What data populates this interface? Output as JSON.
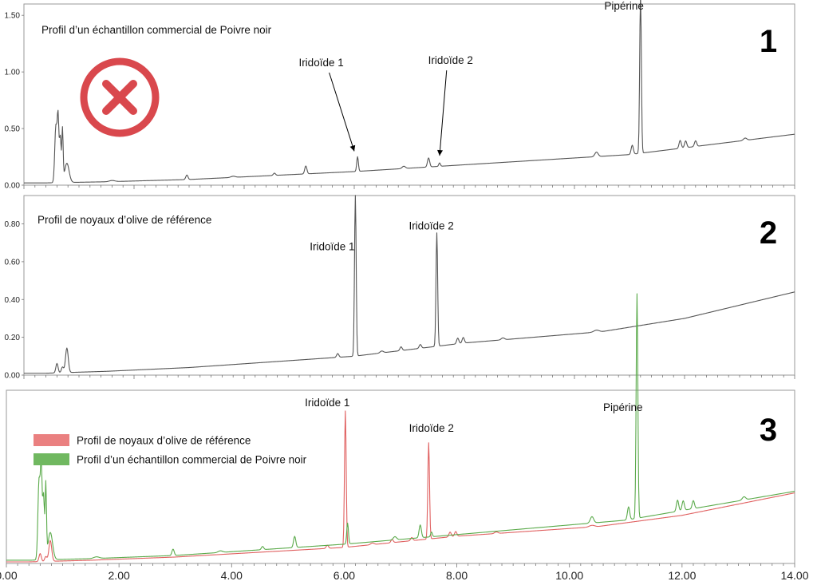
{
  "chart_data": [
    {
      "type": "line",
      "panel_number": "1",
      "title": "Profil d’un échantillon commercial de Poivre noir",
      "xlim": [
        0,
        14
      ],
      "ylim": [
        0,
        1.6
      ],
      "yticks": [
        "0.00",
        "0.50",
        "1.00",
        "1.50"
      ],
      "ytick_values": [
        0,
        0.5,
        1.0,
        1.5
      ],
      "grid": false,
      "rejection_mark": "cross-circle-icon",
      "series": [
        {
          "color": "#555555",
          "baseline": [
            [
              0,
              0.02
            ],
            [
              0.4,
              0.02
            ],
            [
              1.5,
              0.03
            ],
            [
              3,
              0.05
            ],
            [
              6,
              0.12
            ],
            [
              8,
              0.18
            ],
            [
              11,
              0.27
            ],
            [
              14,
              0.45
            ]
          ],
          "peaks": [
            [
              0.58,
              0.5,
              0.02
            ],
            [
              0.62,
              0.56,
              0.015
            ],
            [
              0.66,
              0.4,
              0.015
            ],
            [
              0.7,
              0.46,
              0.012
            ],
            [
              0.78,
              0.17,
              0.04
            ],
            [
              1.6,
              0.01,
              0.05
            ],
            [
              2.96,
              0.04,
              0.02
            ],
            [
              3.8,
              0.01,
              0.04
            ],
            [
              4.55,
              0.02,
              0.02
            ],
            [
              5.12,
              0.07,
              0.02
            ],
            [
              6.06,
              0.13,
              0.015
            ],
            [
              6.9,
              0.02,
              0.03
            ],
            [
              7.35,
              0.08,
              0.02
            ],
            [
              7.55,
              0.03,
              0.015
            ],
            [
              10.4,
              0.04,
              0.03
            ],
            [
              11.05,
              0.08,
              0.02
            ],
            [
              11.2,
              1.4,
              0.015
            ],
            [
              11.92,
              0.07,
              0.02
            ],
            [
              12.02,
              0.06,
              0.02
            ],
            [
              12.2,
              0.05,
              0.02
            ],
            [
              13.1,
              0.02,
              0.03
            ]
          ]
        }
      ],
      "annotations": [
        {
          "text": "Pipérine",
          "x": 11.2,
          "y": 1.55,
          "label_x": 10.9,
          "label_y": 1.55,
          "arrow": false
        },
        {
          "text": "Iridoïde 1",
          "x": 6.0,
          "y": 0.3,
          "label_x": 5.4,
          "label_y": 1.05,
          "arrow": true
        },
        {
          "text": "Iridoïde 2",
          "x": 7.55,
          "y": 0.26,
          "label_x": 7.75,
          "label_y": 1.07,
          "arrow": true
        }
      ]
    },
    {
      "type": "line",
      "panel_number": "2",
      "title": "Profil de noyaux d’olive de référence",
      "xlim": [
        0,
        14
      ],
      "ylim": [
        0,
        0.95
      ],
      "yticks": [
        "0.00",
        "0.20",
        "0.40",
        "0.60",
        "0.80"
      ],
      "ytick_values": [
        0,
        0.2,
        0.4,
        0.6,
        0.8
      ],
      "grid": false,
      "series": [
        {
          "color": "#555555",
          "baseline": [
            [
              0,
              0.01
            ],
            [
              0.4,
              0.01
            ],
            [
              1.5,
              0.02
            ],
            [
              3,
              0.04
            ],
            [
              6,
              0.1
            ],
            [
              8,
              0.17
            ],
            [
              10.5,
              0.23
            ],
            [
              12,
              0.3
            ],
            [
              14,
              0.44
            ]
          ],
          "peaks": [
            [
              0.6,
              0.05,
              0.02
            ],
            [
              0.7,
              0.03,
              0.02
            ],
            [
              0.78,
              0.13,
              0.025
            ],
            [
              5.7,
              0.02,
              0.02
            ],
            [
              6.02,
              0.85,
              0.015
            ],
            [
              6.5,
              0.01,
              0.03
            ],
            [
              6.85,
              0.02,
              0.02
            ],
            [
              7.2,
              0.02,
              0.02
            ],
            [
              7.5,
              0.6,
              0.015
            ],
            [
              7.88,
              0.03,
              0.02
            ],
            [
              7.98,
              0.03,
              0.02
            ],
            [
              8.7,
              0.01,
              0.03
            ],
            [
              10.4,
              0.01,
              0.05
            ]
          ]
        }
      ],
      "annotations": [
        {
          "text": "Iridoïde 1",
          "x": 6.02,
          "y": 0.66,
          "label_x": 5.6,
          "label_y": 0.66,
          "arrow": false
        },
        {
          "text": "Iridoïde 2",
          "x": 7.5,
          "y": 0.77,
          "label_x": 7.4,
          "label_y": 0.77,
          "arrow": false
        }
      ]
    },
    {
      "type": "line",
      "panel_number": "3",
      "xlim": [
        0,
        14
      ],
      "ylim": [
        0,
        1.08
      ],
      "xticks": [
        "0.00",
        "2.00",
        "4.00",
        "6.00",
        "8.00",
        "10.00",
        "12.00",
        "14.00"
      ],
      "xtick_values": [
        0,
        2,
        4,
        6,
        8,
        10,
        12,
        14
      ],
      "grid": false,
      "legend_position": "top-left",
      "series": [
        {
          "name": "Profil de noyaux d’olive de référence",
          "color": "#e06060",
          "legend_color": "#ea8080",
          "baseline": [
            [
              0,
              0.01
            ],
            [
              0.4,
              0.01
            ],
            [
              1.5,
              0.02
            ],
            [
              3,
              0.04
            ],
            [
              6,
              0.1
            ],
            [
              8,
              0.17
            ],
            [
              10.5,
              0.23
            ],
            [
              12,
              0.3
            ],
            [
              14,
              0.44
            ]
          ],
          "peaks": [
            [
              0.6,
              0.05,
              0.02
            ],
            [
              0.7,
              0.03,
              0.02
            ],
            [
              0.78,
              0.13,
              0.025
            ],
            [
              5.7,
              0.02,
              0.02
            ],
            [
              6.02,
              0.85,
              0.015
            ],
            [
              6.5,
              0.01,
              0.03
            ],
            [
              6.85,
              0.02,
              0.02
            ],
            [
              7.2,
              0.02,
              0.02
            ],
            [
              7.5,
              0.6,
              0.015
            ],
            [
              7.88,
              0.03,
              0.02
            ],
            [
              7.98,
              0.03,
              0.02
            ],
            [
              8.7,
              0.01,
              0.03
            ],
            [
              10.4,
              0.01,
              0.05
            ]
          ]
        },
        {
          "name": "Profil d’un échantillon commercial de Poivre noir",
          "color": "#5aaa4a",
          "legend_color": "#70b860",
          "baseline": [
            [
              0,
              0.02
            ],
            [
              0.4,
              0.02
            ],
            [
              1.5,
              0.03
            ],
            [
              3,
              0.05
            ],
            [
              6,
              0.12
            ],
            [
              8,
              0.18
            ],
            [
              11,
              0.27
            ],
            [
              14,
              0.45
            ]
          ],
          "peaks": [
            [
              0.58,
              0.5,
              0.02
            ],
            [
              0.62,
              0.56,
              0.015
            ],
            [
              0.66,
              0.4,
              0.015
            ],
            [
              0.7,
              0.46,
              0.012
            ],
            [
              0.78,
              0.17,
              0.04
            ],
            [
              1.6,
              0.01,
              0.05
            ],
            [
              2.96,
              0.04,
              0.02
            ],
            [
              3.8,
              0.01,
              0.04
            ],
            [
              4.55,
              0.02,
              0.02
            ],
            [
              5.12,
              0.07,
              0.02
            ],
            [
              6.06,
              0.13,
              0.015
            ],
            [
              6.9,
              0.02,
              0.03
            ],
            [
              7.35,
              0.08,
              0.02
            ],
            [
              7.55,
              0.03,
              0.015
            ],
            [
              10.4,
              0.04,
              0.03
            ],
            [
              11.05,
              0.08,
              0.02
            ],
            [
              11.2,
              1.4,
              0.015
            ],
            [
              11.92,
              0.07,
              0.02
            ],
            [
              12.02,
              0.06,
              0.02
            ],
            [
              12.2,
              0.05,
              0.02
            ],
            [
              13.1,
              0.02,
              0.03
            ]
          ]
        }
      ],
      "annotations": [
        {
          "text": "Iridoïde 1",
          "x": 6.0,
          "y": 0.98,
          "label_x": 5.7,
          "label_y": 0.98,
          "arrow": false
        },
        {
          "text": "Iridoïde 2",
          "x": 7.5,
          "y": 0.82,
          "label_x": 7.55,
          "label_y": 0.82,
          "arrow": false
        },
        {
          "text": "Pipérine",
          "x": 11.2,
          "y": 0.95,
          "label_x": 10.95,
          "label_y": 0.95,
          "arrow": false
        }
      ]
    }
  ]
}
